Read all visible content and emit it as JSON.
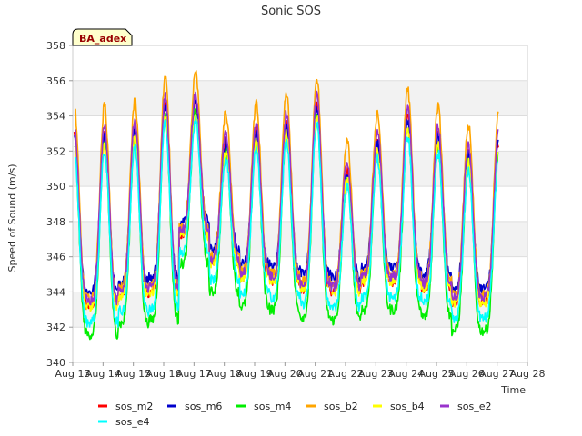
{
  "chart_data": {
    "type": "line",
    "title": "Sonic SOS",
    "xlabel": "Time",
    "ylabel": "Speed of Sound (m/s)",
    "ylim": [
      340,
      358
    ],
    "xlim": [
      "2024-08-13",
      "2024-08-28"
    ],
    "x_ticks": [
      "Aug 13",
      "Aug 14",
      "Aug 15",
      "Aug 16",
      "Aug 17",
      "Aug 18",
      "Aug 19",
      "Aug 20",
      "Aug 21",
      "Aug 22",
      "Aug 23",
      "Aug 24",
      "Aug 25",
      "Aug 26",
      "Aug 27",
      "Aug 28"
    ],
    "y_ticks": [
      340,
      342,
      344,
      346,
      348,
      350,
      352,
      354,
      356,
      358
    ],
    "grid": "horizontal bands",
    "legend_position": "bottom",
    "badge": "BA_adex",
    "x_start": "2024-08-13",
    "days": [
      "Aug 14",
      "Aug 15",
      "Aug 16",
      "Aug 17",
      "Aug 18",
      "Aug 19",
      "Aug 20",
      "Aug 21",
      "Aug 22",
      "Aug 23",
      "Aug 24",
      "Aug 25",
      "Aug 26",
      "Aug 27"
    ],
    "daily_max": [
      353.0,
      353.3,
      354.6,
      354.8,
      352.6,
      353.1,
      353.6,
      354.6,
      351.0,
      352.6,
      353.9,
      352.9,
      351.9,
      352.6
    ],
    "daily_min": [
      343.2,
      343.8,
      344.0,
      347.2,
      345.6,
      344.8,
      344.6,
      344.2,
      344.0,
      344.6,
      344.6,
      344.2,
      343.4,
      343.4
    ],
    "series": [
      {
        "name": "sos_m2",
        "color": "#ff0000",
        "offset_max": 0.0,
        "offset_min": 0.0
      },
      {
        "name": "sos_m6",
        "color": "#0000cc",
        "offset_max": -0.1,
        "offset_min": 0.8
      },
      {
        "name": "sos_m4",
        "color": "#00ee00",
        "offset_max": -0.6,
        "offset_min": -1.6
      },
      {
        "name": "sos_b2",
        "color": "#ffa500",
        "offset_max": 1.6,
        "offset_min": 0.4
      },
      {
        "name": "sos_b4",
        "color": "#ffff00",
        "offset_max": -0.6,
        "offset_min": 0.0
      },
      {
        "name": "sos_e2",
        "color": "#9933cc",
        "offset_max": 0.5,
        "offset_min": 0.3
      },
      {
        "name": "sos_e4",
        "color": "#00ffff",
        "offset_max": -1.0,
        "offset_min": -0.9
      }
    ]
  }
}
